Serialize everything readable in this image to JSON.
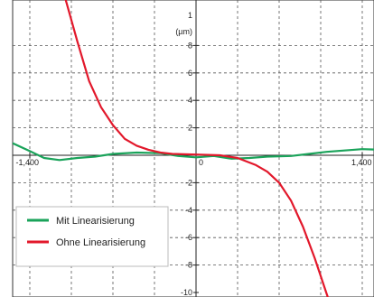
{
  "chart_data": {
    "type": "line",
    "unit_label": "(µm)",
    "y_top_label": "1",
    "xlim": [
      -1400,
      1400
    ],
    "ylim": [
      -10,
      10
    ],
    "x_ticks_labeled": [
      {
        "value": -1400,
        "label": "-1,400"
      },
      {
        "value": 0,
        "label": "0"
      },
      {
        "value": 1400,
        "label": "1,400"
      }
    ],
    "y_ticks": [
      {
        "value": 8,
        "label": "8"
      },
      {
        "value": 6,
        "label": "6"
      },
      {
        "value": 4,
        "label": "4"
      },
      {
        "value": 2,
        "label": "2"
      },
      {
        "value": -2,
        "label": "-2"
      },
      {
        "value": -4,
        "label": "-4"
      },
      {
        "value": -6,
        "label": "-6"
      },
      {
        "value": -8,
        "label": "-8"
      },
      {
        "value": -10,
        "label": "-10"
      }
    ],
    "x_grid": [
      -1400,
      -1050,
      -700,
      -350,
      0,
      350,
      700,
      1050,
      1400
    ],
    "y_grid": [
      8,
      6,
      4,
      2,
      0,
      -2,
      -4,
      -6,
      -8
    ],
    "grid": true,
    "legend_position": "bottom-left",
    "series": [
      {
        "name": "Mit Linearisierung",
        "color": "#1aa35a",
        "points": [
          [
            -1550,
            0.9
          ],
          [
            -1400,
            0.3
          ],
          [
            -1280,
            -0.2
          ],
          [
            -1150,
            -0.35
          ],
          [
            -1000,
            -0.2
          ],
          [
            -850,
            -0.1
          ],
          [
            -700,
            0.1
          ],
          [
            -500,
            0.2
          ],
          [
            -300,
            0.15
          ],
          [
            -150,
            -0.05
          ],
          [
            0,
            -0.15
          ],
          [
            150,
            -0.05
          ],
          [
            300,
            -0.25
          ],
          [
            450,
            -0.2
          ],
          [
            600,
            -0.1
          ],
          [
            800,
            -0.05
          ],
          [
            950,
            0.1
          ],
          [
            1100,
            0.25
          ],
          [
            1250,
            0.35
          ],
          [
            1400,
            0.45
          ],
          [
            1560,
            0.4
          ]
        ]
      },
      {
        "name": "Ohne Linearisierung",
        "color": "#e2182b",
        "points": [
          [
            -1100,
            11.4
          ],
          [
            -1000,
            8.3
          ],
          [
            -900,
            5.4
          ],
          [
            -800,
            3.5
          ],
          [
            -700,
            2.2
          ],
          [
            -600,
            1.2
          ],
          [
            -500,
            0.7
          ],
          [
            -400,
            0.4
          ],
          [
            -300,
            0.2
          ],
          [
            -200,
            0.1
          ],
          [
            0,
            0.05
          ],
          [
            200,
            0.0
          ],
          [
            350,
            -0.2
          ],
          [
            500,
            -0.7
          ],
          [
            600,
            -1.2
          ],
          [
            700,
            -2.0
          ],
          [
            800,
            -3.3
          ],
          [
            900,
            -5.2
          ],
          [
            1000,
            -7.5
          ],
          [
            1100,
            -10.1
          ],
          [
            1150,
            -11.3
          ]
        ]
      }
    ]
  }
}
